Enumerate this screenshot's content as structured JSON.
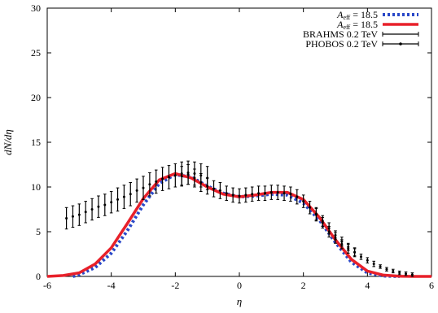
{
  "chart_data": {
    "type": "line",
    "title": "",
    "xlabel": "η",
    "ylabel": "dN/dη",
    "xlim": [
      -6,
      6
    ],
    "ylim": [
      0,
      30
    ],
    "x_ticks": [
      -6,
      -4,
      -2,
      0,
      2,
      4,
      6
    ],
    "y_ticks": [
      0,
      5,
      10,
      15,
      20,
      25,
      30
    ],
    "grid": false,
    "legend_placement": "top-right",
    "series": [
      {
        "name": "A_eff = 18.5",
        "style": "dotted",
        "color": "#2a48c8",
        "x": [
          -5.2,
          -5.0,
          -4.5,
          -4.0,
          -3.5,
          -3.0,
          -2.5,
          -2.0,
          -1.5,
          -1.0,
          -0.5,
          0.0,
          0.5,
          1.0,
          1.5,
          2.0,
          2.5,
          3.0,
          3.5,
          4.0,
          4.5,
          5.0
        ],
        "y": [
          0.0,
          0.2,
          1.0,
          2.6,
          5.1,
          8.0,
          10.4,
          11.4,
          11.1,
          10.1,
          9.3,
          8.9,
          9.0,
          9.2,
          9.1,
          8.2,
          6.3,
          3.8,
          1.6,
          0.4,
          0.05,
          0.0
        ]
      },
      {
        "name": "A_eff = 18.5",
        "style": "solid",
        "color": "#e8202a",
        "x": [
          -6.0,
          -5.5,
          -5.0,
          -4.5,
          -4.0,
          -3.5,
          -3.0,
          -2.5,
          -2.0,
          -1.5,
          -1.0,
          -0.5,
          0.0,
          0.5,
          1.0,
          1.5,
          2.0,
          2.5,
          3.0,
          3.5,
          4.0,
          4.5,
          5.0,
          5.5,
          6.0
        ],
        "y": [
          0.0,
          0.1,
          0.4,
          1.4,
          3.2,
          5.9,
          8.7,
          10.8,
          11.5,
          11.0,
          10.0,
          9.2,
          8.9,
          9.1,
          9.4,
          9.4,
          8.6,
          6.6,
          4.1,
          1.9,
          0.6,
          0.15,
          0.03,
          0.0,
          0.0
        ]
      },
      {
        "name": "BRAHMS 0.2 TeV",
        "style": "errorbar",
        "color": "#000000",
        "x": [
          -1.8,
          -1.6,
          -1.4,
          -1.2,
          -1.0,
          -0.8,
          -0.6,
          -0.4,
          -0.2,
          0.0,
          0.2,
          0.4,
          0.6,
          0.8,
          1.0,
          1.2,
          1.4,
          1.6,
          1.8,
          2.0,
          2.2,
          2.4,
          2.6,
          2.8,
          3.0,
          3.2,
          3.4,
          3.6
        ],
        "y": [
          11.2,
          11.4,
          11.0,
          10.5,
          10.1,
          9.8,
          9.6,
          9.3,
          9.1,
          9.0,
          9.1,
          9.2,
          9.3,
          9.3,
          9.4,
          9.4,
          9.3,
          9.2,
          8.9,
          8.4,
          7.7,
          6.9,
          6.0,
          5.0,
          4.3,
          3.6,
          3.1,
          2.7
        ],
        "err": [
          1.1,
          1.1,
          1.0,
          1.0,
          0.9,
          0.9,
          0.9,
          0.8,
          0.8,
          0.8,
          0.8,
          0.8,
          0.8,
          0.8,
          0.8,
          0.8,
          0.8,
          0.8,
          0.8,
          0.7,
          0.7,
          0.7,
          0.6,
          0.6,
          0.6,
          0.5,
          0.5,
          0.5
        ]
      },
      {
        "name": "PHOBOS 0.2 TeV",
        "style": "errorbar",
        "color": "#000000",
        "x": [
          -5.4,
          -5.2,
          -5.0,
          -4.8,
          -4.6,
          -4.4,
          -4.2,
          -4.0,
          -3.8,
          -3.6,
          -3.4,
          -3.2,
          -3.0,
          -2.8,
          -2.6,
          -2.4,
          -2.2,
          -2.0,
          -1.8,
          -1.6,
          -1.4,
          -1.2,
          -1.0,
          2.4,
          2.6,
          2.8,
          3.0,
          3.2,
          3.4,
          3.6,
          3.8,
          4.0,
          4.2,
          4.4,
          4.6,
          4.8,
          5.0,
          5.2,
          5.4
        ],
        "y": [
          6.5,
          6.7,
          6.9,
          7.2,
          7.5,
          7.8,
          8.0,
          8.3,
          8.6,
          8.9,
          9.2,
          9.6,
          9.9,
          10.3,
          10.6,
          10.9,
          11.1,
          11.3,
          11.5,
          11.6,
          11.5,
          11.3,
          11.0,
          7.0,
          6.2,
          5.4,
          4.6,
          3.9,
          3.3,
          2.7,
          2.2,
          1.8,
          1.4,
          1.1,
          0.8,
          0.6,
          0.4,
          0.3,
          0.2
        ],
        "err": [
          1.2,
          1.2,
          1.2,
          1.2,
          1.2,
          1.2,
          1.2,
          1.2,
          1.3,
          1.3,
          1.3,
          1.3,
          1.3,
          1.3,
          1.3,
          1.3,
          1.3,
          1.3,
          1.3,
          1.3,
          1.3,
          1.3,
          1.3,
          0.7,
          0.6,
          0.6,
          0.5,
          0.5,
          0.4,
          0.4,
          0.3,
          0.3,
          0.3,
          0.2,
          0.2,
          0.2,
          0.2,
          0.2,
          0.2
        ]
      }
    ],
    "legend": [
      {
        "label_base": "A",
        "label_sub": "eff",
        "label_rest": " = 18.5",
        "style": "dotted",
        "color": "#2a48c8"
      },
      {
        "label_base": "A",
        "label_sub": "eff",
        "label_rest": " = 18.5",
        "style": "solid",
        "color": "#e8202a"
      },
      {
        "label": "BRAHMS 0.2 TeV",
        "style": "errorbar",
        "color": "#000000"
      },
      {
        "label": "PHOBOS 0.2 TeV",
        "style": "errorbar",
        "color": "#000000"
      }
    ]
  }
}
